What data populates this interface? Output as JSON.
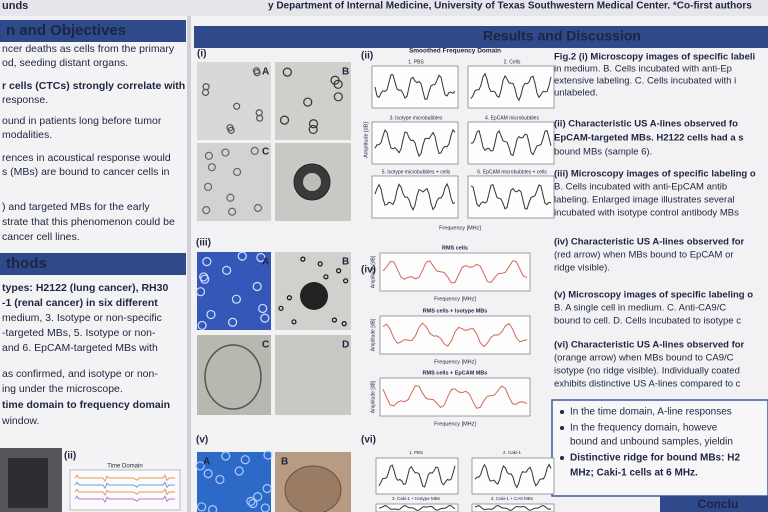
{
  "header": {
    "institution_fragment": "unds",
    "affiliation": "y Department of Internal Medicine, University of Texas Southwestern Medical Center. *Co-first authors"
  },
  "left": {
    "objectives_title": "n and Objectives",
    "objectives": [
      "ncer deaths as cells from the primary",
      "od, seeding distant organs.",
      "r cells (CTCs) strongly correlate with",
      "response.",
      "ound in patients long before tumor",
      "modalities.",
      "rences in acoustical response would",
      "s (MBs) are bound to cancer cells in",
      ") and targeted MBs for the early",
      "strate that this phenomenon could be",
      "cancer cell lines."
    ],
    "methods_title": "thods",
    "methods": [
      "types: H2122 (lung cancer), RH30",
      "-1 (renal cancer) in six different",
      "medium, 3. Isotype or non-specific",
      "-targeted MBs, 5. Isotype or non-",
      "and 6. EpCAM-targeted MBs with",
      "as confirmed, and isotype or non-",
      "ing under the microscope.",
      "time domain to frequency domain",
      "window."
    ],
    "panel_label": "(ii)",
    "plot_title": "Time Domain"
  },
  "results": {
    "title": "Results and Discussion",
    "panels": [
      "(i)",
      "(ii)",
      "(iii)",
      "(iv)",
      "(v)",
      "(vi)"
    ],
    "image_letters_i": [
      "A",
      "B",
      "C"
    ],
    "image_letters_iii": [
      "A",
      "B",
      "C",
      "D"
    ],
    "image_letters_v": [
      "A",
      "B"
    ],
    "plot_ii": {
      "title": "Smoothed Frequency Domain",
      "subplots": [
        "1. PBS",
        "2. Cells",
        "3. Isotype microbubbles",
        "4. EpCAM microbubbles",
        "5. Isotype microbubbles + cells",
        "6. EpCAM microbubbles + cells"
      ],
      "xlabel": "Frequency [MHz]",
      "ylabel": "Amplitude [dB]"
    },
    "plot_iv": {
      "subplots": [
        "RMS cells",
        "RMS cells + Isotype MBs",
        "RMS cells + EpCAM MBs"
      ],
      "xlabel": "Frequency [MHz]",
      "ylabel": "Amplitude [dB]"
    },
    "plot_vi": {
      "subplots": [
        "1. PBS",
        "2. Caki-1",
        "3. Caki-1 + Isotype MBs",
        "4. Caki-1 + CA9 MBs"
      ]
    }
  },
  "captions": [
    "Fig.2 (i) Microscopy images of specific labeli",
    "in medium. B. Cells incubated with anti-Ep",
    "extensive labeling. C. Cells incubated with i",
    "unlabeled.",
    "(ii) Characteristic US A-lines observed fo",
    "EpCAM-targeted MBs. H2122 cells had a s",
    "bound MBs (sample 6).",
    "(iii) Microscopy images of specific labeling o",
    "B. Cells incubated with anti-EpCAM antib",
    "labeling. Enlarged image illustrates several",
    "incubated with isotype control antibody MBs",
    "(iv) Characteristic US A-lines observed for",
    "(red arrow) when MBs bound to EpCAM or",
    "ridge visible).",
    "(v) Microscopy images of specific labeling o",
    "B. A single cell in medium. C. Anti-CA9/C",
    "bound to cell. D. Cells incubated to isotype c",
    "(vi) Characteristic US A-lines observed for",
    "(orange arrow) when MBs bound to CA9/C",
    "isotype (no ridge visible). Individually coated",
    "exhibits distinctive US A-lines compared to c"
  ],
  "summary": [
    "In the time domain, A-line responses",
    "In the frequency domain, howeve",
    "bound and unbound samples, yieldin",
    "Distinctive ridge for bound MBs: H2",
    "MHz; Caki-1 cells at 6 MHz."
  ],
  "conclusion_title": "Conclu"
}
